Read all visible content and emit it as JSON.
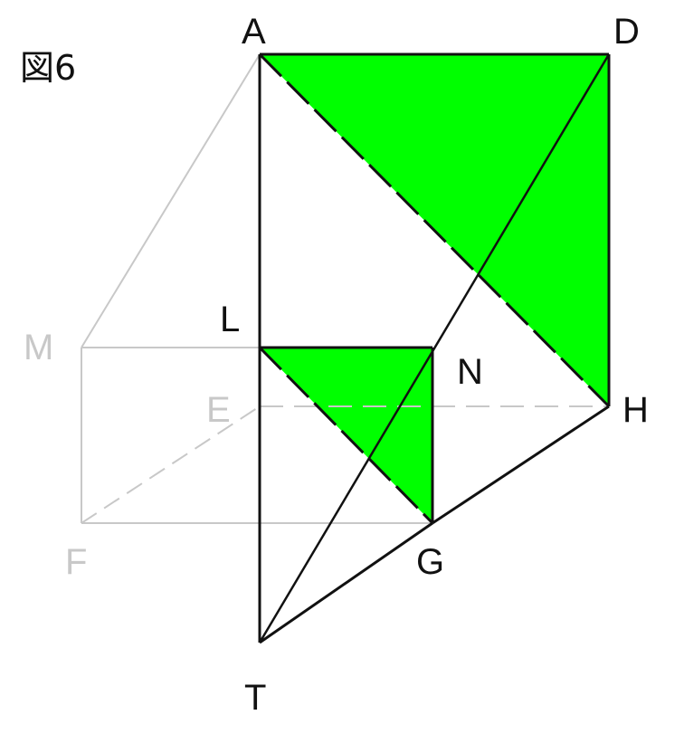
{
  "figure": {
    "title": "図6"
  },
  "labels": {
    "A": "A",
    "D": "D",
    "L": "L",
    "M": "M",
    "N": "N",
    "E": "E",
    "H": "H",
    "F": "F",
    "G": "G",
    "T": "T"
  },
  "colors": {
    "fill": "#00ff00",
    "line_dark": "#111111",
    "line_light": "#c8c8c8"
  }
}
